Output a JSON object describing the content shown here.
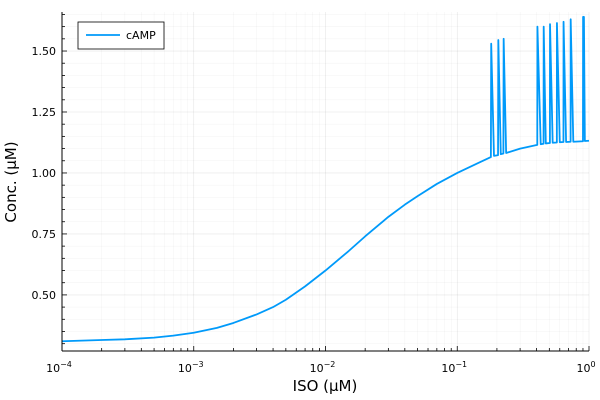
{
  "chart_data": {
    "type": "line",
    "title": "",
    "xlabel": "ISO (μM)",
    "ylabel": "Conc. (μM)",
    "x_scale": "log10",
    "xlim": [
      0.0001,
      1
    ],
    "ylim": [
      0.27,
      1.66
    ],
    "grid": true,
    "legend_position": "top-left",
    "x_ticks": [
      {
        "value": 0.0001,
        "base": "10",
        "exp": "−4"
      },
      {
        "value": 0.001,
        "base": "10",
        "exp": "−3"
      },
      {
        "value": 0.01,
        "base": "10",
        "exp": "−2"
      },
      {
        "value": 0.1,
        "base": "10",
        "exp": "−1"
      },
      {
        "value": 1,
        "base": "10",
        "exp": "0"
      }
    ],
    "y_ticks": [
      {
        "value": 0.5,
        "label": "0.50"
      },
      {
        "value": 0.75,
        "label": "0.75"
      },
      {
        "value": 1.0,
        "label": "1.00"
      },
      {
        "value": 1.25,
        "label": "1.25"
      },
      {
        "value": 1.5,
        "label": "1.50"
      }
    ],
    "series": [
      {
        "name": "cAMP",
        "color": "#009AFA",
        "points": [
          [
            0.0001,
            0.31
          ],
          [
            0.0002,
            0.315
          ],
          [
            0.0003,
            0.318
          ],
          [
            0.0005,
            0.325
          ],
          [
            0.0007,
            0.333
          ],
          [
            0.001,
            0.345
          ],
          [
            0.0015,
            0.365
          ],
          [
            0.002,
            0.385
          ],
          [
            0.003,
            0.42
          ],
          [
            0.004,
            0.45
          ],
          [
            0.005,
            0.48
          ],
          [
            0.007,
            0.535
          ],
          [
            0.01,
            0.6
          ],
          [
            0.015,
            0.68
          ],
          [
            0.02,
            0.74
          ],
          [
            0.03,
            0.82
          ],
          [
            0.04,
            0.87
          ],
          [
            0.05,
            0.905
          ],
          [
            0.07,
            0.955
          ],
          [
            0.1,
            1.0
          ],
          [
            0.15,
            1.045
          ],
          [
            0.18,
            1.065
          ],
          [
            0.181,
            1.53
          ],
          [
            0.19,
            1.07
          ],
          [
            0.204,
            1.073
          ],
          [
            0.205,
            1.545
          ],
          [
            0.214,
            1.077
          ],
          [
            0.224,
            1.08
          ],
          [
            0.225,
            1.55
          ],
          [
            0.235,
            1.082
          ],
          [
            0.3,
            1.1
          ],
          [
            0.405,
            1.115
          ],
          [
            0.406,
            1.6
          ],
          [
            0.43,
            1.118
          ],
          [
            0.452,
            1.12
          ],
          [
            0.453,
            1.6
          ],
          [
            0.47,
            1.121
          ],
          [
            0.505,
            1.123
          ],
          [
            0.506,
            1.61
          ],
          [
            0.53,
            1.124
          ],
          [
            0.57,
            1.125
          ],
          [
            0.571,
            1.615
          ],
          [
            0.6,
            1.126
          ],
          [
            0.64,
            1.127
          ],
          [
            0.641,
            1.62
          ],
          [
            0.67,
            1.127
          ],
          [
            0.725,
            1.128
          ],
          [
            0.726,
            1.63
          ],
          [
            0.76,
            1.128
          ],
          [
            0.9,
            1.13
          ],
          [
            0.902,
            1.64
          ],
          [
            0.915,
            1.64
          ],
          [
            0.93,
            1.131
          ],
          [
            1.0,
            1.132
          ]
        ]
      }
    ]
  }
}
